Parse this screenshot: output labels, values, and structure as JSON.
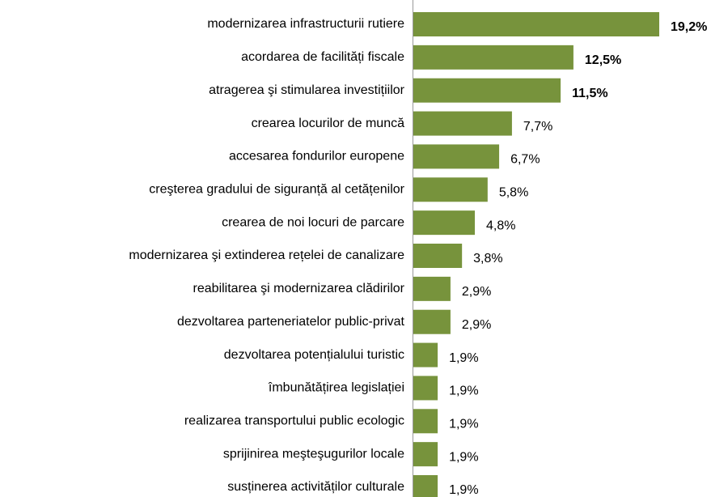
{
  "chart_data": {
    "type": "bar",
    "orientation": "horizontal",
    "color": "#77933c",
    "categories": [
      "modernizarea infrastructurii rutiere",
      "acordarea de facilități fiscale",
      "atragerea şi stimularea investițiilor",
      "crearea locurilor de muncă",
      "accesarea fondurilor europene",
      "creşterea gradului de siguranță al cetățenilor",
      "crearea de noi locuri de parcare",
      "modernizarea şi extinderea rețelei de canalizare",
      "reabilitarea şi modernizarea clădirilor",
      "dezvoltarea parteneriatelor public-privat",
      "dezvoltarea potențialului turistic",
      "îmbunătățirea legislației",
      "realizarea transportului public  ecologic",
      "sprijinirea meşteşugurilor locale",
      "susținerea activităților culturale"
    ],
    "values": [
      19.2,
      12.5,
      11.5,
      7.7,
      6.7,
      5.8,
      4.8,
      3.8,
      2.9,
      2.9,
      1.9,
      1.9,
      1.9,
      1.9,
      1.9
    ],
    "value_labels": [
      "19,2%",
      "12,5%",
      "11,5%",
      "7,7%",
      "6,7%",
      "5,8%",
      "4,8%",
      "3,8%",
      "2,9%",
      "2,9%",
      "1,9%",
      "1,9%",
      "1,9%",
      "1,9%",
      "1,9%"
    ]
  }
}
